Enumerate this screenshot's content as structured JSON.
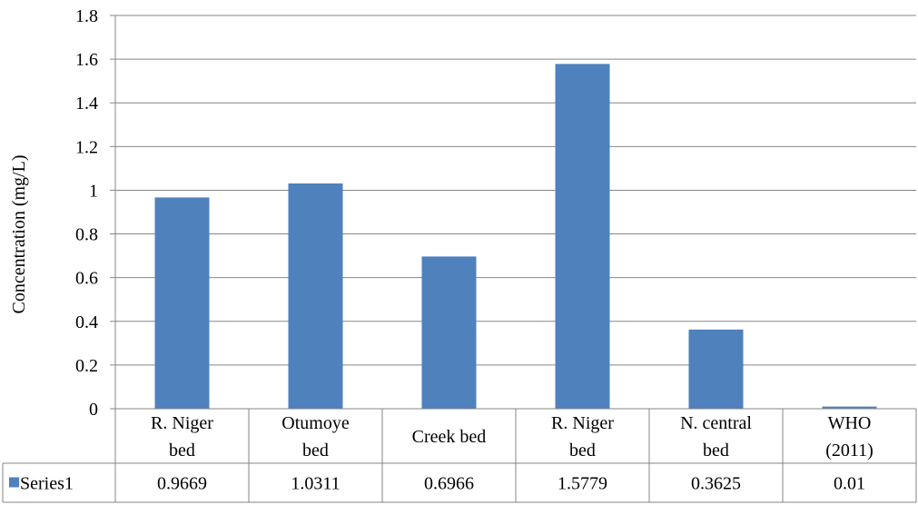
{
  "chart_data": {
    "type": "bar",
    "title": "",
    "xlabel": "",
    "ylabel": "Concentration (mg/L)",
    "ylim": [
      0,
      1.8
    ],
    "yticks": [
      "0",
      "0.2",
      "0.4",
      "0.6",
      "0.8",
      "1",
      "1.2",
      "1.4",
      "1.6",
      "1.8"
    ],
    "grid": true,
    "legend": "data-table-left",
    "categories": [
      [
        "R. Niger",
        "bed"
      ],
      [
        "Otumoye",
        "bed"
      ],
      [
        "Creek bed"
      ],
      [
        "R. Niger",
        "bed"
      ],
      [
        "N. central",
        "bed"
      ],
      [
        "WHO",
        "(2011)"
      ]
    ],
    "series": [
      {
        "name": "Series1",
        "color": "#4f81bd",
        "values": [
          0.9669,
          1.0311,
          0.6966,
          1.5779,
          0.3625,
          0.01
        ],
        "value_labels": [
          "0.9669",
          "1.0311",
          "0.6966",
          "1.5779",
          "0.3625",
          "0.01"
        ]
      }
    ],
    "data_table": true
  }
}
